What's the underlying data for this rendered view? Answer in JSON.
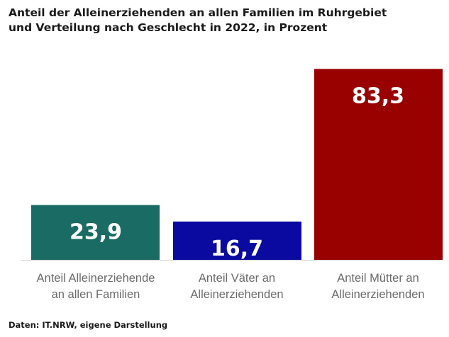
{
  "chart_data": {
    "type": "bar",
    "title_lines": [
      "Anteil der Alleinerziehenden an allen Familien im Ruhrgebiet",
      "und Verteilung nach Geschlecht in 2022, in Prozent"
    ],
    "categories": [
      [
        "Anteil Alleinerziehende",
        "an allen Familien"
      ],
      [
        "Anteil Väter an",
        "Alleinerziehenden"
      ],
      [
        "Anteil Mütter an",
        "Alleinerziehenden"
      ]
    ],
    "values": [
      23.9,
      16.7,
      83.3
    ],
    "value_labels": [
      "23,9",
      "16,7",
      "83,3"
    ],
    "colors": [
      "#1a6b63",
      "#0a0aa0",
      "#990000"
    ],
    "ylim": [
      0,
      100
    ],
    "grid": false,
    "source": "Daten: IT.NRW, eigene Darstellung"
  }
}
